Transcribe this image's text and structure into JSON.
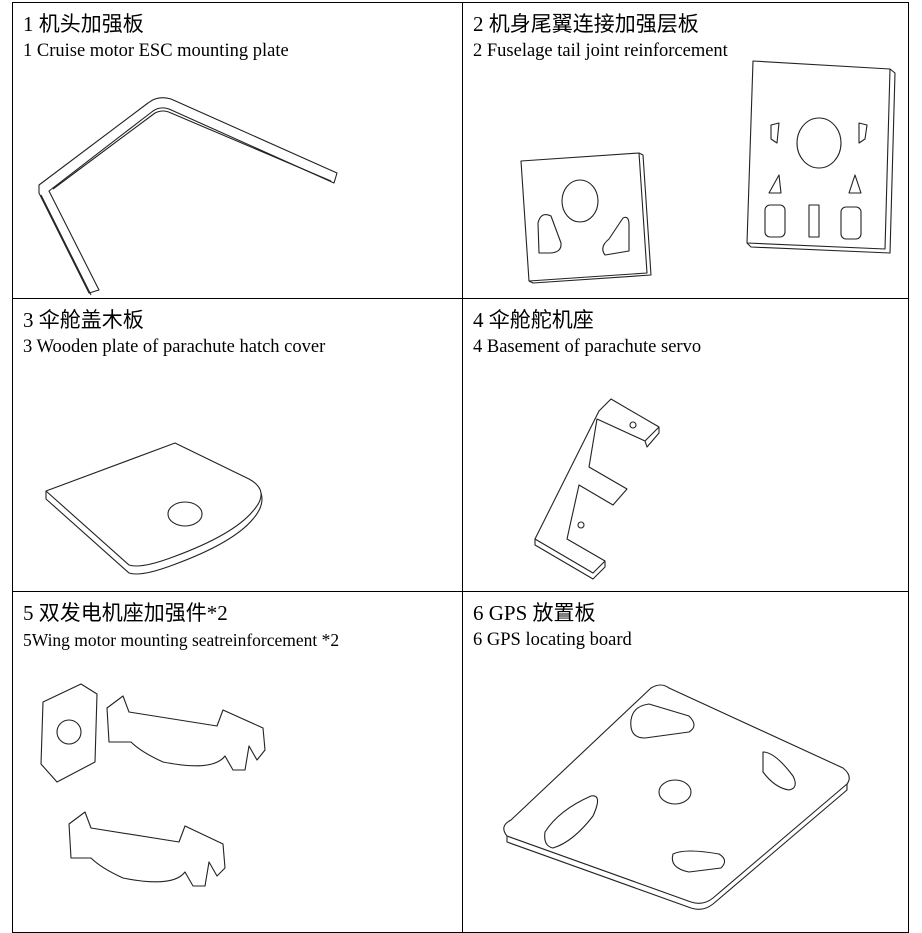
{
  "table": {
    "rows": [
      [
        {
          "title": "1 机头加强板",
          "caption": "1 Cruise motor ESC mounting plate"
        },
        {
          "title": "2 机身尾翼连接加强层板",
          "caption": "2 Fuselage tail joint reinforcement"
        }
      ],
      [
        {
          "title": "3 伞舱盖木板",
          "caption": "3 Wooden plate of parachute hatch cover"
        },
        {
          "title": "4 伞舱舵机座",
          "caption": "4 Basement of parachute servo"
        }
      ],
      [
        {
          "title": "5 双发电机座加强件*2",
          "caption": "5Wing motor mounting seatreinforcement *2"
        },
        {
          "title": "6 GPS 放置板",
          "caption": "6 GPS locating board"
        }
      ]
    ]
  }
}
